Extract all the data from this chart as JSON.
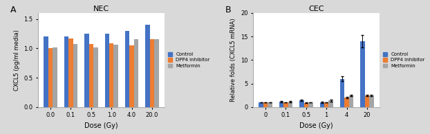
{
  "panel_A": {
    "title": "NEC",
    "xlabel": "Dose (Gy)",
    "ylabel": "CXCL5 (pg/ml media)",
    "categories": [
      "0.0",
      "0.1",
      "0.5",
      "1.0",
      "4.0",
      "20.0"
    ],
    "control": [
      1.2,
      1.2,
      1.25,
      1.25,
      1.3,
      1.4
    ],
    "dpp4": [
      1.0,
      1.17,
      1.07,
      1.08,
      1.05,
      1.16
    ],
    "metformin": [
      1.01,
      1.07,
      1.02,
      1.06,
      1.15,
      1.16
    ],
    "ylim": [
      0,
      1.6
    ],
    "yticks": [
      0,
      0.5,
      1.0,
      1.5
    ]
  },
  "panel_B": {
    "title": "CEC",
    "xlabel": "Dose (Gy)",
    "ylabel": "Relative folds (CXCL5 mRNA)",
    "categories": [
      "0",
      "0.1",
      "0.5",
      "1",
      "4",
      "20"
    ],
    "control": [
      1.0,
      1.1,
      1.4,
      1.0,
      6.0,
      14.0
    ],
    "dpp4": [
      1.0,
      1.0,
      0.9,
      1.0,
      2.0,
      2.5
    ],
    "metformin": [
      1.0,
      1.2,
      1.0,
      1.4,
      2.5,
      2.5
    ],
    "control_err": [
      0.05,
      0.15,
      0.15,
      0.15,
      0.5,
      1.3
    ],
    "dpp4_err": [
      0.05,
      0.05,
      0.05,
      0.05,
      0.15,
      0.15
    ],
    "metformin_err": [
      0.05,
      0.15,
      0.05,
      0.2,
      0.15,
      0.15
    ],
    "ylim": [
      0,
      20
    ],
    "yticks": [
      0,
      5,
      10,
      15,
      20
    ]
  },
  "colors": {
    "control": "#4472C4",
    "dpp4": "#ED7D31",
    "metformin": "#A5A5A5"
  },
  "legend_labels": [
    "Control",
    "DPP4 inhibitor",
    "Metformin"
  ],
  "bg_color": "#D9D9D9",
  "axes_bg": "#FFFFFF"
}
